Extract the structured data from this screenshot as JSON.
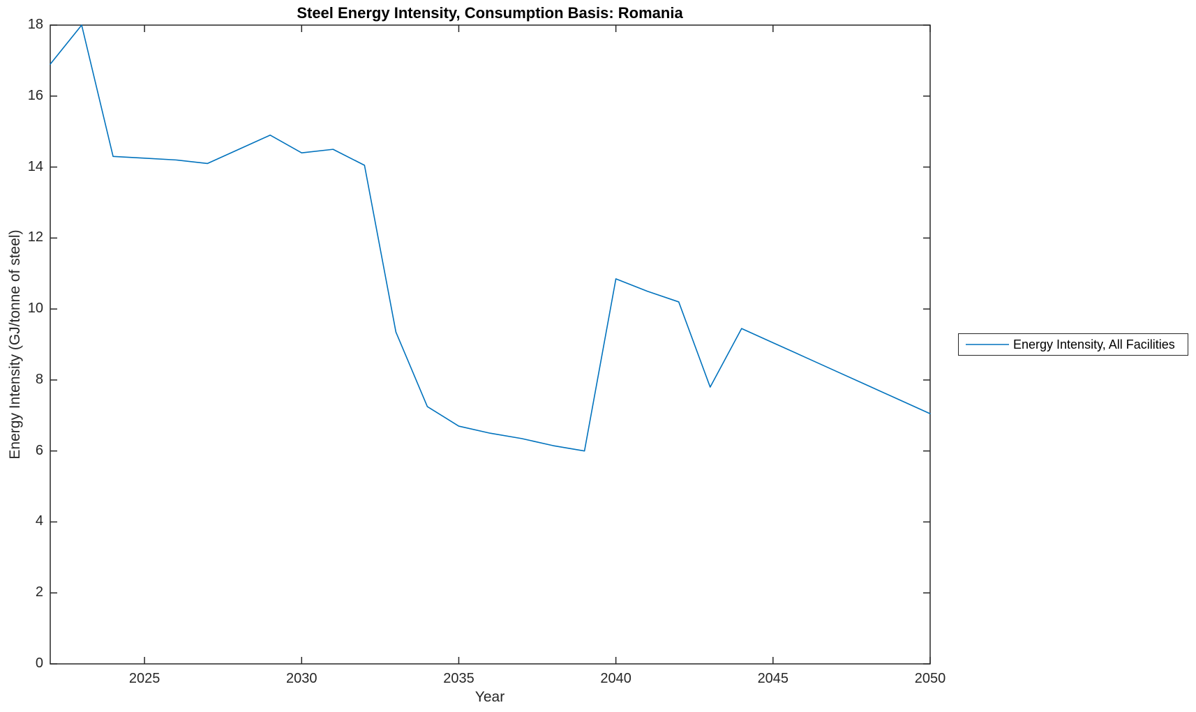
{
  "chart_data": {
    "type": "line",
    "title": "Steel Energy Intensity, Consumption Basis: Romania",
    "xlabel": "Year",
    "ylabel": "Energy Intensity (GJ/tonne of steel)",
    "xlim": [
      2022,
      2050
    ],
    "ylim": [
      0,
      18
    ],
    "xticks": [
      2025,
      2030,
      2035,
      2040,
      2045,
      2050
    ],
    "yticks": [
      0,
      2,
      4,
      6,
      8,
      10,
      12,
      14,
      16,
      18
    ],
    "grid": false,
    "legend_position": "outside-right",
    "axis_color": "#262626",
    "background_color": "#ffffff",
    "x": [
      2022,
      2023,
      2024,
      2025,
      2026,
      2027,
      2028,
      2029,
      2030,
      2031,
      2032,
      2033,
      2034,
      2035,
      2036,
      2037,
      2038,
      2039,
      2040,
      2041,
      2042,
      2043,
      2044,
      2045,
      2046,
      2047,
      2048,
      2049,
      2050
    ],
    "series": [
      {
        "name": "Energy Intensity, All Facilities",
        "color": "#0072BD",
        "values": [
          16.9,
          18.0,
          14.3,
          14.25,
          14.2,
          14.1,
          14.5,
          14.9,
          14.4,
          14.5,
          14.05,
          9.35,
          7.25,
          6.7,
          6.5,
          6.35,
          6.15,
          6.0,
          10.85,
          10.5,
          10.2,
          7.8,
          9.45,
          9.05,
          8.65,
          8.25,
          7.85,
          7.45,
          7.05
        ]
      }
    ]
  }
}
